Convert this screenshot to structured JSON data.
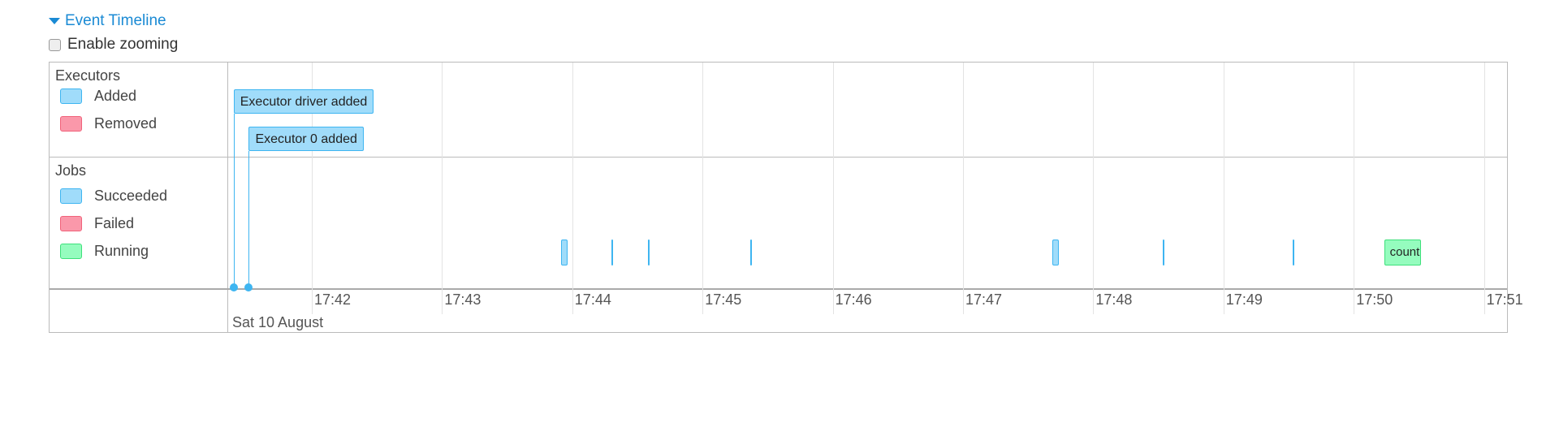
{
  "header": {
    "title": "Event Timeline",
    "enable_zooming": "Enable zooming",
    "zoom_checked": false
  },
  "legend": {
    "executors": {
      "title": "Executors",
      "items": [
        {
          "label": "Added",
          "color": "#a0dcfa",
          "border": "#3eb5f1"
        },
        {
          "label": "Removed",
          "color": "#fa98aa",
          "border": "#f1627a"
        }
      ]
    },
    "jobs": {
      "title": "Jobs",
      "items": [
        {
          "label": "Succeeded",
          "color": "#a0dcfa",
          "border": "#3eb5f1"
        },
        {
          "label": "Failed",
          "color": "#fa98aa",
          "border": "#f1627a"
        },
        {
          "label": "Running",
          "color": "#95fcbe",
          "border": "#3ee07b"
        }
      ]
    }
  },
  "axis": {
    "ticks": [
      "17:42",
      "17:43",
      "17:44",
      "17:45",
      "17:46",
      "17:47",
      "17:48",
      "17:49",
      "17:50",
      "17:51"
    ],
    "date": "Sat 10 August"
  },
  "executor_events": [
    {
      "label": "Executor driver added",
      "time": "17:41:24"
    },
    {
      "label": "Executor 0 added",
      "time": "17:41:31"
    }
  ],
  "jobs": [
    {
      "start": "17:43:55",
      "end": "17:43:58",
      "status": "succeeded",
      "label": ""
    },
    {
      "start": "17:44:18",
      "end": "17:44:18",
      "status": "succeeded",
      "label": ""
    },
    {
      "start": "17:44:35",
      "end": "17:44:35",
      "status": "succeeded",
      "label": ""
    },
    {
      "start": "17:45:22",
      "end": "17:45:22",
      "status": "succeeded",
      "label": ""
    },
    {
      "start": "17:47:41",
      "end": "17:47:43",
      "status": "succeeded",
      "label": ""
    },
    {
      "start": "17:48:32",
      "end": "17:48:32",
      "status": "succeeded",
      "label": ""
    },
    {
      "start": "17:49:32",
      "end": "17:49:32",
      "status": "succeeded",
      "label": ""
    },
    {
      "start": "17:50:14",
      "end": "17:50:31",
      "status": "running",
      "label": "count"
    }
  ]
}
